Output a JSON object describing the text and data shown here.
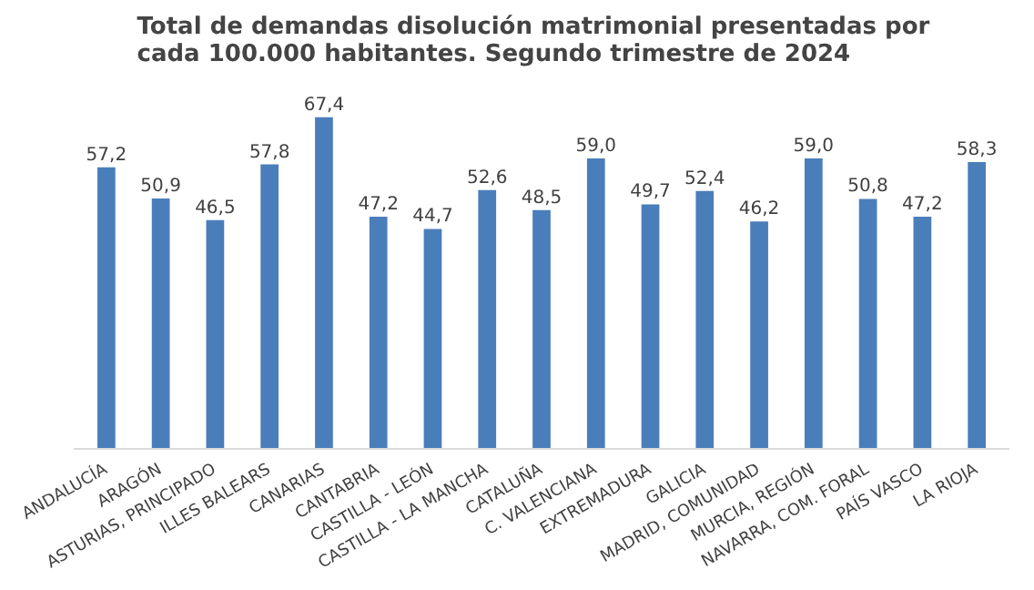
{
  "chart_data": {
    "type": "bar",
    "title": "Total de demandas disolución  matrimonial  presentadas por\ncada 100.000  habitantes. Segundo trimestre  de 2024",
    "categories": [
      "ANDALUCÍA",
      "ARAGÓN",
      "ASTURIAS, PRINCIPADO",
      "ILLES BALEARS",
      "CANARIAS",
      "CANTABRIA",
      "CASTILLA - LEÓN",
      "CASTILLA - LA MANCHA",
      "CATALUÑA",
      "C. VALENCIANA",
      "EXTREMADURA",
      "GALICIA",
      "MADRID, COMUNIDAD",
      "MURCIA, REGIÓN",
      "NAVARRA, COM. FORAL",
      "PAÍS VASCO",
      "LA RIOJA"
    ],
    "values": [
      57.2,
      50.9,
      46.5,
      57.8,
      67.4,
      47.2,
      44.7,
      52.6,
      48.5,
      59.0,
      49.7,
      52.4,
      46.2,
      59.0,
      50.8,
      47.2,
      58.3
    ],
    "value_labels": [
      "57,2",
      "50,9",
      "46,5",
      "57,8",
      "67,4",
      "47,2",
      "44,7",
      "52,6",
      "48,5",
      "59,0",
      "49,7",
      "52,4",
      "46,2",
      "59,0",
      "50,8",
      "47,2",
      "58,3"
    ],
    "color": "#4a7ebb",
    "grid": false
  }
}
